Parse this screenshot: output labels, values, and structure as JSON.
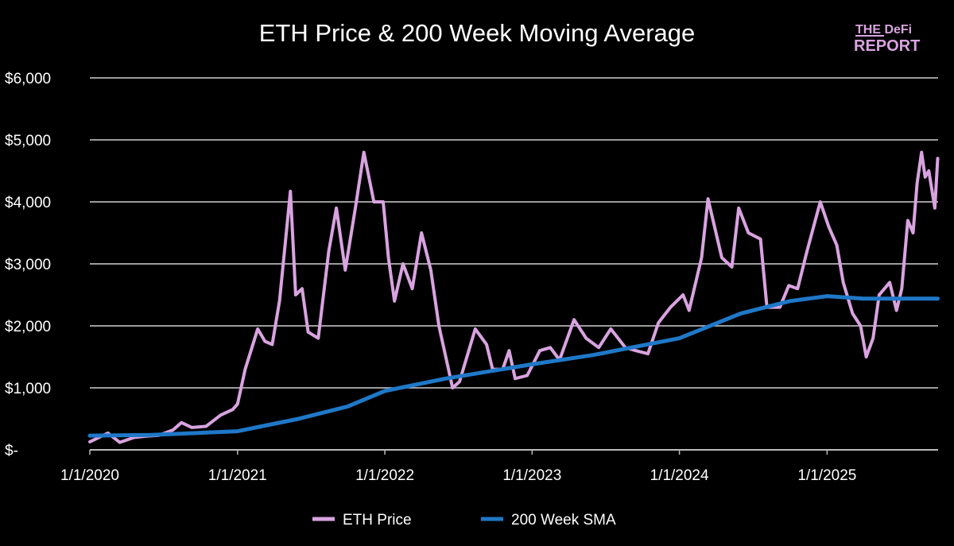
{
  "chart_data": {
    "type": "line",
    "title": "ETH Price & 200 Week Moving Average",
    "xlabel": "",
    "ylabel": "",
    "x_ticks": [
      "1/1/2020",
      "1/1/2021",
      "1/1/2022",
      "1/1/2023",
      "1/1/2024",
      "1/1/2025"
    ],
    "y_ticks": [
      "$-",
      "$1,000",
      "$2,000",
      "$3,000",
      "$4,000",
      "$5,000",
      "$6,000"
    ],
    "ylim": [
      0,
      6000
    ],
    "xlim": [
      "2020-01-01",
      "2025-10-02"
    ],
    "grid": "horizontal",
    "legend_position": "bottom",
    "series": [
      {
        "name": "ETH Price",
        "color": "#d9a3e0",
        "points": [
          [
            "2020-01-01",
            130
          ],
          [
            "2020-02-15",
            270
          ],
          [
            "2020-03-15",
            120
          ],
          [
            "2020-04-20",
            200
          ],
          [
            "2020-05-20",
            220
          ],
          [
            "2020-06-20",
            235
          ],
          [
            "2020-07-25",
            320
          ],
          [
            "2020-08-15",
            440
          ],
          [
            "2020-09-10",
            360
          ],
          [
            "2020-10-15",
            380
          ],
          [
            "2020-11-20",
            560
          ],
          [
            "2020-12-20",
            650
          ],
          [
            "2021-01-01",
            740
          ],
          [
            "2021-01-20",
            1300
          ],
          [
            "2021-02-20",
            1950
          ],
          [
            "2021-03-10",
            1750
          ],
          [
            "2021-03-28",
            1700
          ],
          [
            "2021-04-15",
            2400
          ],
          [
            "2021-05-12",
            4170
          ],
          [
            "2021-05-25",
            2500
          ],
          [
            "2021-06-10",
            2600
          ],
          [
            "2021-06-25",
            1900
          ],
          [
            "2021-07-20",
            1800
          ],
          [
            "2021-08-15",
            3200
          ],
          [
            "2021-09-03",
            3900
          ],
          [
            "2021-09-25",
            2900
          ],
          [
            "2021-10-20",
            3900
          ],
          [
            "2021-11-10",
            4800
          ],
          [
            "2021-12-05",
            4000
          ],
          [
            "2021-12-28",
            4000
          ],
          [
            "2022-01-10",
            3100
          ],
          [
            "2022-01-25",
            2400
          ],
          [
            "2022-02-15",
            3000
          ],
          [
            "2022-03-10",
            2600
          ],
          [
            "2022-04-02",
            3500
          ],
          [
            "2022-04-25",
            2900
          ],
          [
            "2022-05-15",
            2000
          ],
          [
            "2022-06-18",
            1000
          ],
          [
            "2022-07-05",
            1100
          ],
          [
            "2022-08-13",
            1950
          ],
          [
            "2022-09-10",
            1700
          ],
          [
            "2022-09-25",
            1300
          ],
          [
            "2022-10-20",
            1300
          ],
          [
            "2022-11-05",
            1600
          ],
          [
            "2022-11-20",
            1150
          ],
          [
            "2022-12-20",
            1200
          ],
          [
            "2023-01-20",
            1600
          ],
          [
            "2023-02-15",
            1650
          ],
          [
            "2023-03-10",
            1450
          ],
          [
            "2023-04-15",
            2100
          ],
          [
            "2023-05-15",
            1800
          ],
          [
            "2023-06-15",
            1650
          ],
          [
            "2023-07-15",
            1950
          ],
          [
            "2023-08-20",
            1650
          ],
          [
            "2023-09-15",
            1600
          ],
          [
            "2023-10-15",
            1550
          ],
          [
            "2023-11-10",
            2050
          ],
          [
            "2023-12-10",
            2300
          ],
          [
            "2024-01-10",
            2500
          ],
          [
            "2024-01-25",
            2250
          ],
          [
            "2024-02-25",
            3100
          ],
          [
            "2024-03-12",
            4050
          ],
          [
            "2024-04-15",
            3100
          ],
          [
            "2024-05-10",
            2950
          ],
          [
            "2024-05-27",
            3900
          ],
          [
            "2024-06-20",
            3500
          ],
          [
            "2024-07-20",
            3400
          ],
          [
            "2024-08-05",
            2300
          ],
          [
            "2024-09-06",
            2300
          ],
          [
            "2024-09-28",
            2650
          ],
          [
            "2024-10-20",
            2600
          ],
          [
            "2024-11-12",
            3200
          ],
          [
            "2024-12-15",
            4000
          ],
          [
            "2025-01-05",
            3600
          ],
          [
            "2025-01-25",
            3300
          ],
          [
            "2025-02-10",
            2700
          ],
          [
            "2025-03-05",
            2200
          ],
          [
            "2025-03-25",
            2000
          ],
          [
            "2025-04-08",
            1500
          ],
          [
            "2025-04-25",
            1800
          ],
          [
            "2025-05-10",
            2500
          ],
          [
            "2025-06-05",
            2700
          ],
          [
            "2025-06-22",
            2250
          ],
          [
            "2025-07-05",
            2600
          ],
          [
            "2025-07-20",
            3700
          ],
          [
            "2025-08-02",
            3500
          ],
          [
            "2025-08-12",
            4300
          ],
          [
            "2025-08-23",
            4800
          ],
          [
            "2025-09-01",
            4400
          ],
          [
            "2025-09-10",
            4500
          ],
          [
            "2025-09-25",
            3900
          ],
          [
            "2025-10-02",
            4700
          ]
        ]
      },
      {
        "name": "200 Week SMA",
        "color": "#1f78c8",
        "points": [
          [
            "2020-01-01",
            230
          ],
          [
            "2020-06-01",
            240
          ],
          [
            "2021-01-01",
            300
          ],
          [
            "2021-06-01",
            500
          ],
          [
            "2021-10-01",
            700
          ],
          [
            "2022-01-01",
            950
          ],
          [
            "2022-06-01",
            1150
          ],
          [
            "2023-01-01",
            1380
          ],
          [
            "2023-06-01",
            1530
          ],
          [
            "2024-01-01",
            1800
          ],
          [
            "2024-06-01",
            2200
          ],
          [
            "2024-10-01",
            2400
          ],
          [
            "2025-01-01",
            2480
          ],
          [
            "2025-04-01",
            2440
          ],
          [
            "2025-10-02",
            2440
          ]
        ]
      }
    ]
  },
  "logo": {
    "line1": "THE DeFi",
    "line2": "REPORT"
  }
}
